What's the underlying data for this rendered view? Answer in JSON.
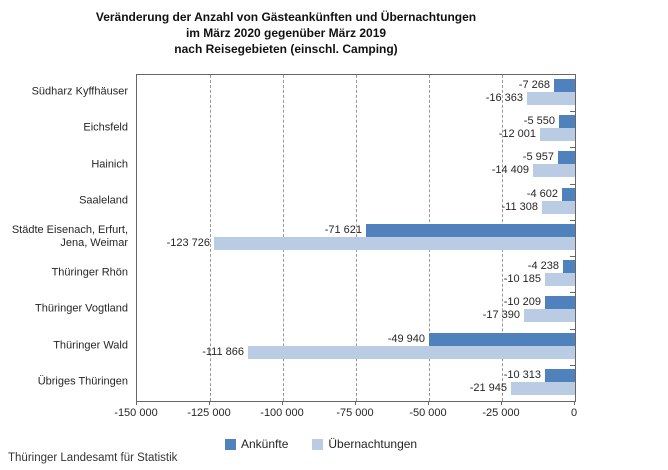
{
  "title": {
    "line1": "Veränderung der Anzahl von Gästeankünften und Übernachtungen",
    "line2": "im März 2020 gegenüber März 2019",
    "line3": "nach Reisegebieten (einschl. Camping)"
  },
  "footer": "Thüringer Landesamt für Statistik",
  "colors": {
    "ankuenfte": "#4f81bd",
    "uebernachtungen": "#b9cce4",
    "grid": "#999999",
    "axis": "#666666",
    "text": "#262626"
  },
  "chart_data": {
    "type": "bar",
    "orientation": "horizontal",
    "title": "Veränderung der Anzahl von Gästeankünften und Übernachtungen im März 2020 gegenüber März 2019 nach Reisegebieten (einschl. Camping)",
    "categories": [
      "Südharz Kyffhäuser",
      "Eichsfeld",
      "Hainich",
      "Saaleland",
      "Städte Eisenach, Erfurt,\nJena, Weimar",
      "Thüringer Rhön",
      "Thüringer Vogtland",
      "Thüringer Wald",
      "Übriges Thüringen"
    ],
    "series": [
      {
        "name": "Ankünfte",
        "color": "#4f81bd",
        "values": [
          -7268,
          -5550,
          -5957,
          -4602,
          -71621,
          -4238,
          -10209,
          -49940,
          -10313
        ],
        "labels": [
          "-7 268",
          "-5 550",
          "-5 957",
          "-4 602",
          "-71 621",
          "-4 238",
          "-10 209",
          "-49 940",
          "-10 313"
        ]
      },
      {
        "name": "Übernachtungen",
        "color": "#b9cce4",
        "values": [
          -16363,
          -12001,
          -14409,
          -11308,
          -123726,
          -10185,
          -17390,
          -111866,
          -21945
        ],
        "labels": [
          "-16 363",
          "-12 001",
          "-14 409",
          "-11 308",
          "-123 726",
          "-10 185",
          "-17 390",
          "-111 866",
          "-21 945"
        ]
      }
    ],
    "xlim": [
      -150000,
      0
    ],
    "xticks": [
      -150000,
      -125000,
      -100000,
      -75000,
      -50000,
      -25000,
      0
    ],
    "xtick_labels": [
      "-150 000",
      "-125 000",
      "-100 000",
      "-75 000",
      "-50 000",
      "-25 000",
      "0"
    ],
    "grid": "vertical-dashed",
    "legend_position": "bottom",
    "value_labels": "outside-end"
  }
}
